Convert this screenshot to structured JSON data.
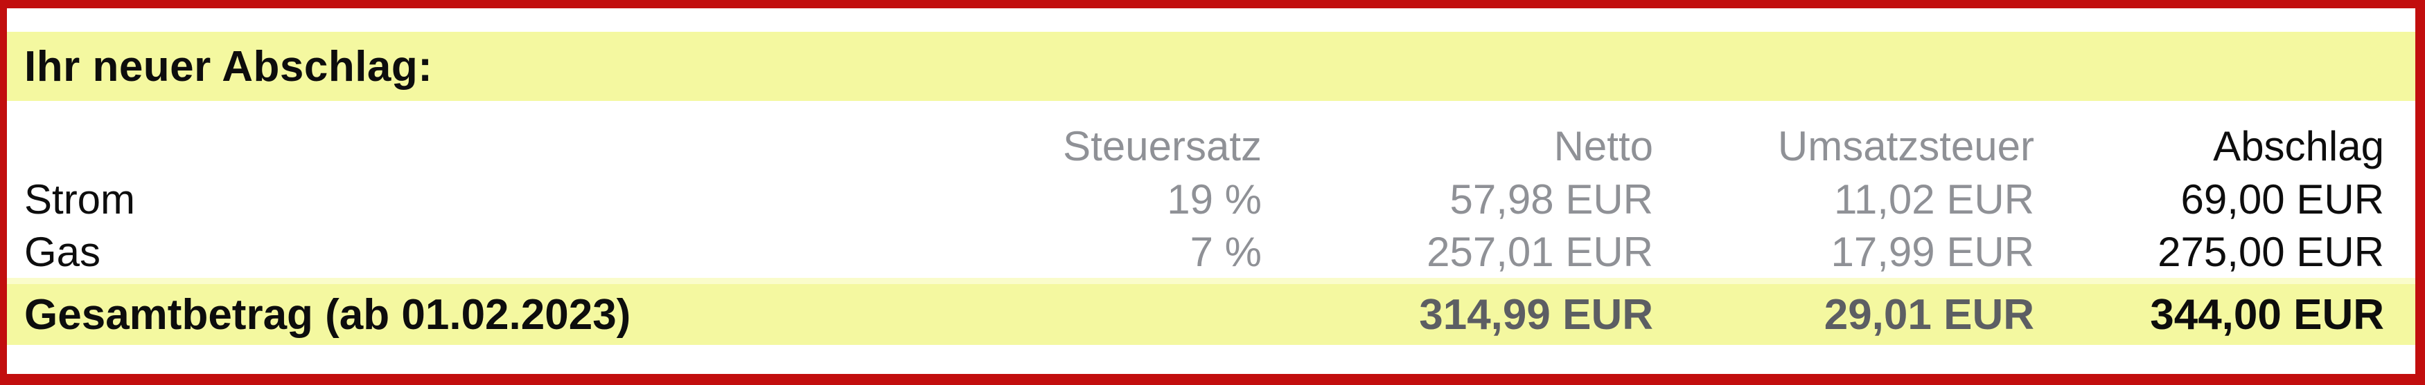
{
  "section": {
    "title": "Ihr neuer Abschlag:"
  },
  "table": {
    "headers": {
      "steuersatz": "Steuersatz",
      "netto": "Netto",
      "umsatzsteuer": "Umsatzsteuer",
      "abschlag": "Abschlag"
    },
    "rows": [
      {
        "label": "Strom",
        "steuersatz": "19 %",
        "netto": "57,98 EUR",
        "umsatzsteuer": "11,02 EUR",
        "abschlag": "69,00 EUR"
      },
      {
        "label": "Gas",
        "steuersatz": "7 %",
        "netto": "257,01 EUR",
        "umsatzsteuer": "17,99 EUR",
        "abschlag": "275,00 EUR"
      }
    ],
    "total": {
      "label": "Gesamtbetrag (ab 01.02.2023)",
      "netto": "314,99 EUR",
      "umsatzsteuer": "29,01 EUR",
      "abschlag": "344,00 EUR"
    }
  },
  "colors": {
    "border_red": "#c20e0e",
    "band_yellow": "#f4f8a0",
    "band_yellow_light": "#fafccb",
    "text_gray": "#8f9196",
    "total_gray": "#5c5e63",
    "text_black": "#0d0d0d"
  }
}
